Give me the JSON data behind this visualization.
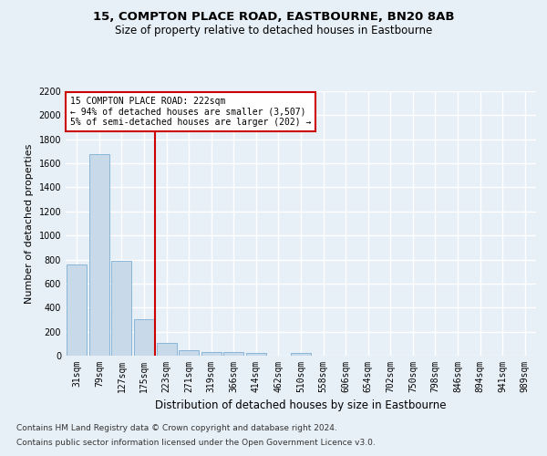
{
  "title1": "15, COMPTON PLACE ROAD, EASTBOURNE, BN20 8AB",
  "title2": "Size of property relative to detached houses in Eastbourne",
  "xlabel": "Distribution of detached houses by size in Eastbourne",
  "ylabel": "Number of detached properties",
  "categories": [
    "31sqm",
    "79sqm",
    "127sqm",
    "175sqm",
    "223sqm",
    "271sqm",
    "319sqm",
    "366sqm",
    "414sqm",
    "462sqm",
    "510sqm",
    "558sqm",
    "606sqm",
    "654sqm",
    "702sqm",
    "750sqm",
    "798sqm",
    "846sqm",
    "894sqm",
    "941sqm",
    "989sqm"
  ],
  "values": [
    760,
    1680,
    790,
    300,
    110,
    45,
    33,
    28,
    22,
    0,
    20,
    0,
    0,
    0,
    0,
    0,
    0,
    0,
    0,
    0,
    0
  ],
  "bar_color": "#c8daea",
  "bar_edge_color": "#7bafd4",
  "vline_x_idx": 4,
  "annotation_text": "15 COMPTON PLACE ROAD: 222sqm\n← 94% of detached houses are smaller (3,507)\n5% of semi-detached houses are larger (202) →",
  "annotation_box_color": "#ffffff",
  "annotation_box_edge": "#cc0000",
  "vline_color": "#cc0000",
  "ylim": [
    0,
    2200
  ],
  "yticks": [
    0,
    200,
    400,
    600,
    800,
    1000,
    1200,
    1400,
    1600,
    1800,
    2000,
    2200
  ],
  "footnote1": "Contains HM Land Registry data © Crown copyright and database right 2024.",
  "footnote2": "Contains public sector information licensed under the Open Government Licence v3.0.",
  "bg_color": "#e8f0f7",
  "plot_bg_color": "#e8f0f7",
  "grid_color": "#ffffff",
  "title_fontsize": 9.5,
  "subtitle_fontsize": 8.5,
  "tick_fontsize": 7,
  "ylabel_fontsize": 8,
  "xlabel_fontsize": 8.5
}
